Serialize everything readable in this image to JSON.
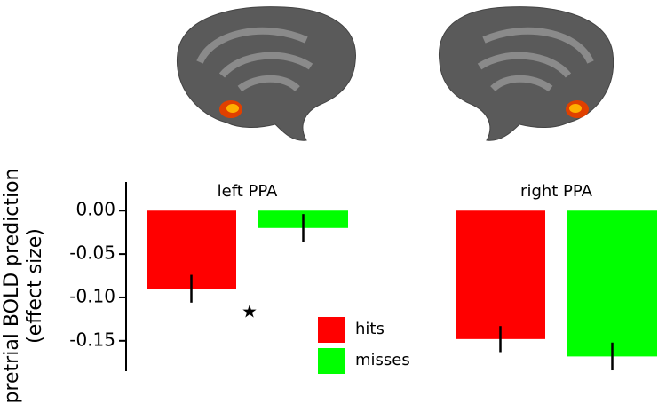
{
  "chart_data": {
    "type": "bar",
    "ylabel": [
      "pretrial BOLD prediction",
      "(effect size)"
    ],
    "categories": [
      "left PPA",
      "right PPA"
    ],
    "series": [
      {
        "name": "hits",
        "color": "#ff0000",
        "values": [
          -0.09,
          -0.148
        ],
        "errors": [
          0.016,
          0.015
        ]
      },
      {
        "name": "misses",
        "color": "#00ff00",
        "values": [
          -0.02,
          -0.168
        ],
        "errors": [
          0.016,
          0.016
        ]
      }
    ],
    "ylim": [
      -0.185,
      0.033
    ],
    "yticks": [
      {
        "value": 0,
        "label": "0.00"
      },
      {
        "value": -0.05,
        "label": "-0.05"
      },
      {
        "value": -0.1,
        "label": "-0.10"
      },
      {
        "value": -0.15,
        "label": "-0.15"
      }
    ],
    "annotations": [
      "★"
    ]
  }
}
